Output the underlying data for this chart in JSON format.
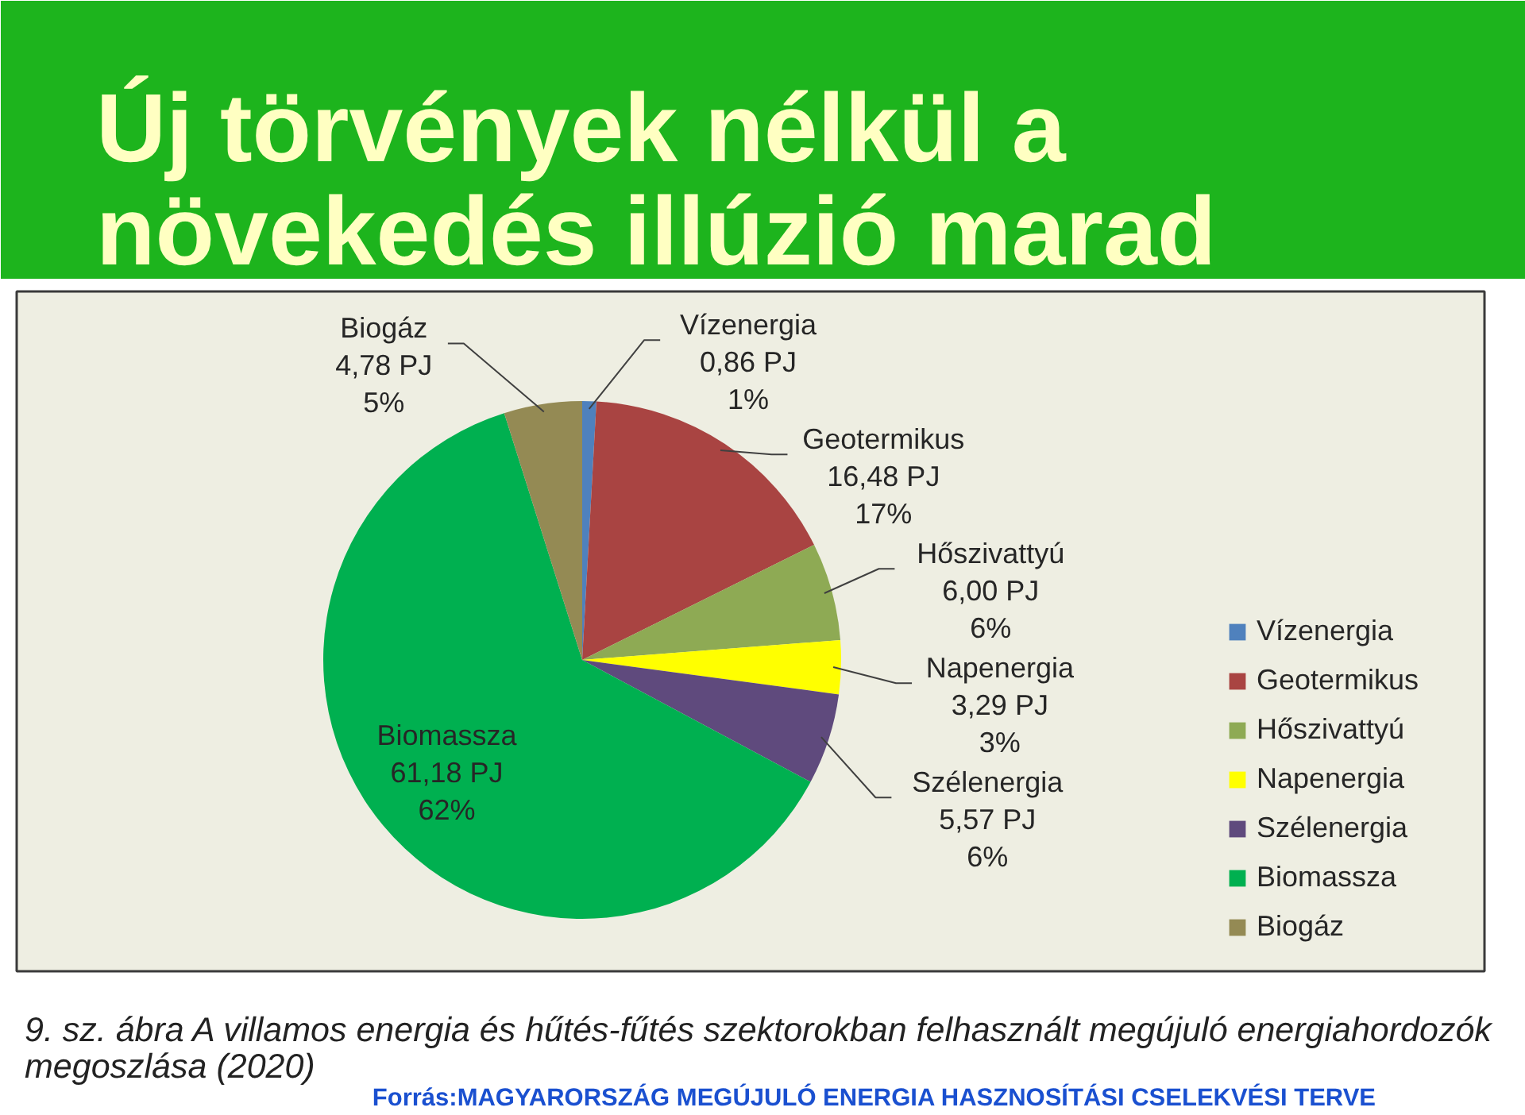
{
  "chart_data": {
    "type": "pie",
    "title": "Új törvények nélkül a növekedés illúzió marad",
    "categories": [
      "Vízenergia",
      "Geotermikus",
      "Hőszivattyú",
      "Napenergia",
      "Szélenergia",
      "Biomassza",
      "Biogáz"
    ],
    "values": [
      0.86,
      16.48,
      6.0,
      3.29,
      5.57,
      61.18,
      4.78
    ],
    "value_labels": [
      "0,86 PJ\n1%",
      "16,48 PJ\n17%",
      "6,00 PJ\n6%",
      "3,29 PJ\n3%",
      "5,57 PJ\n6%",
      "61,18 PJ\n62%",
      "4,78 PJ\n5%"
    ],
    "colors": [
      "#4f81bd",
      "#a94442",
      "#8eaa54",
      "#ffff00",
      "#5f4a7d",
      "#00b050",
      "#948a54"
    ],
    "legend": "right",
    "annotations": [
      "9. sz. ábra A villamos energia és hűtés-fűtés szektorokban felhasznált megújuló energiahordozók megoszlása (2020)",
      "Forrás:MAGYARORSZÁG MEGÚJULÓ ENERGIA HASZNOSÍTÁSI CSELEKVÉSI TERVE"
    ]
  }
}
